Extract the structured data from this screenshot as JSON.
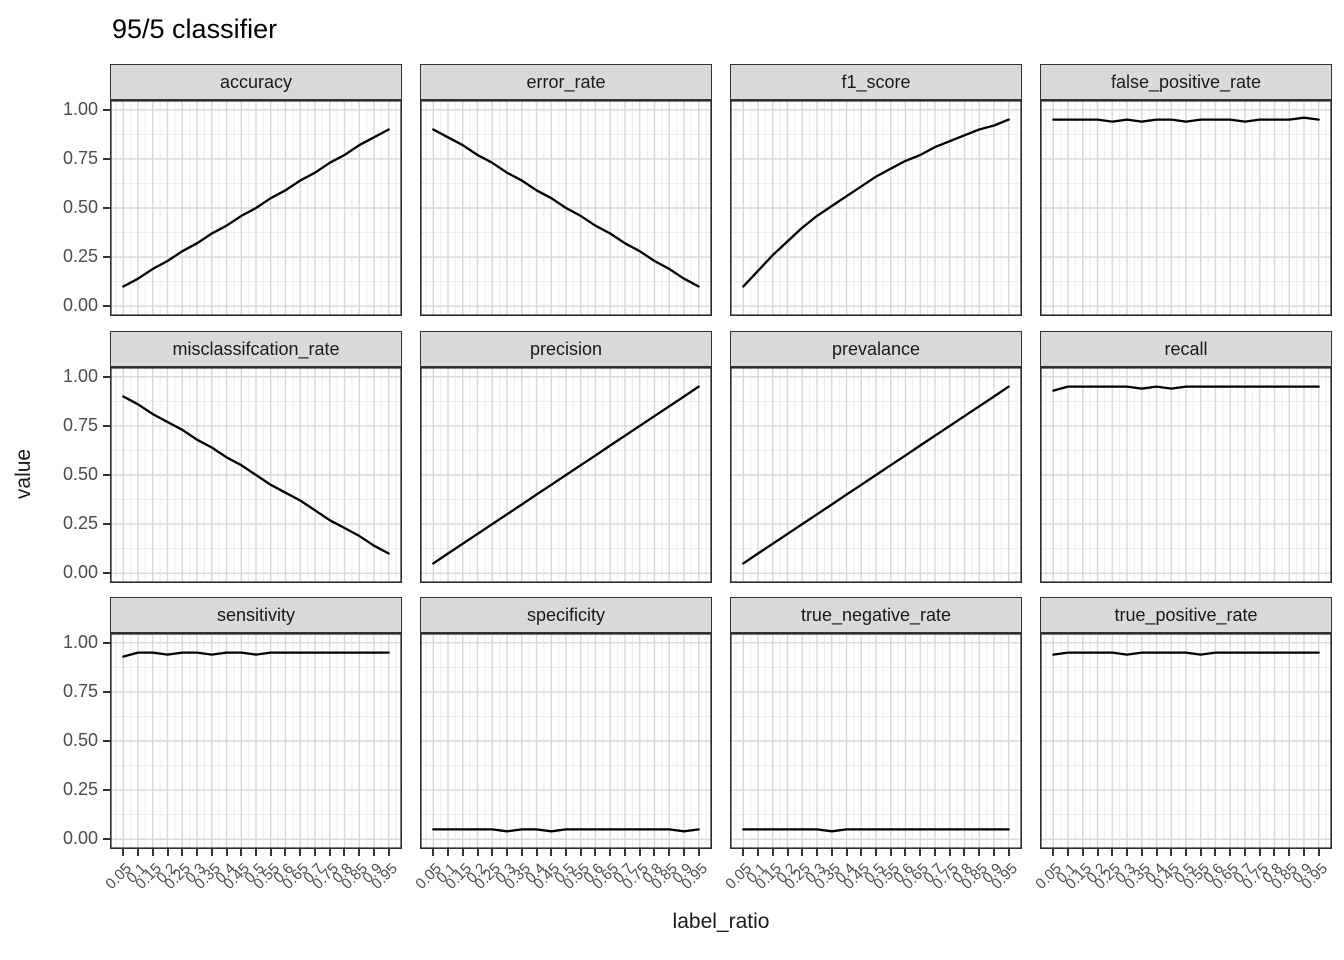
{
  "title": "95/5 classifier",
  "colors": {
    "line": "#000000",
    "strip_bg": "#d9d9d9",
    "strip_border": "#333333",
    "panel_border": "#2b2b2b",
    "grid_major": "#d8d8d8",
    "grid_minor": "#ededed",
    "tick_text": "#4d4d4d",
    "title_text": "#000000"
  },
  "chart_data": {
    "type": "line",
    "title": "95/5 classifier",
    "xlabel": "label_ratio",
    "ylabel": "value",
    "ylim": [
      0,
      1
    ],
    "grid": true,
    "legend_position": "none",
    "facet_layout": {
      "rows": 3,
      "cols": 4
    },
    "x": [
      0.05,
      0.1,
      0.15,
      0.2,
      0.25,
      0.3,
      0.35,
      0.4,
      0.45,
      0.5,
      0.55,
      0.6,
      0.65,
      0.7,
      0.75,
      0.8,
      0.85,
      0.9,
      0.95
    ],
    "x_tick_labels": [
      "0.05",
      "0.1",
      "0.15",
      "0.2",
      "0.25",
      "0.3",
      "0.35",
      "0.4",
      "0.45",
      "0.5",
      "0.55",
      "0.6",
      "0.65",
      "0.7",
      "0.75",
      "0.8",
      "0.85",
      "0.9",
      "0.95"
    ],
    "y_tick_values": [
      1.0,
      0.75,
      0.5,
      0.25,
      0.0
    ],
    "y_tick_labels": [
      "1.00",
      "0.75",
      "0.50",
      "0.25",
      "0.00"
    ],
    "series": [
      {
        "name": "accuracy",
        "values": [
          0.1,
          0.14,
          0.19,
          0.23,
          0.28,
          0.32,
          0.37,
          0.41,
          0.46,
          0.5,
          0.55,
          0.59,
          0.64,
          0.68,
          0.73,
          0.77,
          0.82,
          0.86,
          0.9
        ]
      },
      {
        "name": "error_rate",
        "values": [
          0.9,
          0.86,
          0.82,
          0.77,
          0.73,
          0.68,
          0.64,
          0.59,
          0.55,
          0.5,
          0.46,
          0.41,
          0.37,
          0.32,
          0.28,
          0.23,
          0.19,
          0.14,
          0.1
        ]
      },
      {
        "name": "f1_score",
        "values": [
          0.1,
          0.18,
          0.26,
          0.33,
          0.4,
          0.46,
          0.51,
          0.56,
          0.61,
          0.66,
          0.7,
          0.74,
          0.77,
          0.81,
          0.84,
          0.87,
          0.9,
          0.92,
          0.95
        ]
      },
      {
        "name": "false_positive_rate",
        "values": [
          0.95,
          0.95,
          0.95,
          0.95,
          0.94,
          0.95,
          0.94,
          0.95,
          0.95,
          0.94,
          0.95,
          0.95,
          0.95,
          0.94,
          0.95,
          0.95,
          0.95,
          0.96,
          0.95
        ]
      },
      {
        "name": "misclassifcation_rate",
        "values": [
          0.9,
          0.86,
          0.81,
          0.77,
          0.73,
          0.68,
          0.64,
          0.59,
          0.55,
          0.5,
          0.45,
          0.41,
          0.37,
          0.32,
          0.27,
          0.23,
          0.19,
          0.14,
          0.1
        ]
      },
      {
        "name": "precision",
        "values": [
          0.05,
          0.1,
          0.15,
          0.2,
          0.25,
          0.3,
          0.35,
          0.4,
          0.45,
          0.5,
          0.55,
          0.6,
          0.65,
          0.7,
          0.75,
          0.8,
          0.85,
          0.9,
          0.95
        ]
      },
      {
        "name": "prevalance",
        "values": [
          0.05,
          0.1,
          0.15,
          0.2,
          0.25,
          0.3,
          0.35,
          0.4,
          0.45,
          0.5,
          0.55,
          0.6,
          0.65,
          0.7,
          0.75,
          0.8,
          0.85,
          0.9,
          0.95
        ]
      },
      {
        "name": "recall",
        "values": [
          0.93,
          0.95,
          0.95,
          0.95,
          0.95,
          0.95,
          0.94,
          0.95,
          0.94,
          0.95,
          0.95,
          0.95,
          0.95,
          0.95,
          0.95,
          0.95,
          0.95,
          0.95,
          0.95
        ]
      },
      {
        "name": "sensitivity",
        "values": [
          0.93,
          0.95,
          0.95,
          0.94,
          0.95,
          0.95,
          0.94,
          0.95,
          0.95,
          0.94,
          0.95,
          0.95,
          0.95,
          0.95,
          0.95,
          0.95,
          0.95,
          0.95,
          0.95
        ]
      },
      {
        "name": "specificity",
        "values": [
          0.05,
          0.05,
          0.05,
          0.05,
          0.05,
          0.04,
          0.05,
          0.05,
          0.04,
          0.05,
          0.05,
          0.05,
          0.05,
          0.05,
          0.05,
          0.05,
          0.05,
          0.04,
          0.05
        ]
      },
      {
        "name": "true_negative_rate",
        "values": [
          0.05,
          0.05,
          0.05,
          0.05,
          0.05,
          0.05,
          0.04,
          0.05,
          0.05,
          0.05,
          0.05,
          0.05,
          0.05,
          0.05,
          0.05,
          0.05,
          0.05,
          0.05,
          0.05
        ]
      },
      {
        "name": "true_positive_rate",
        "values": [
          0.94,
          0.95,
          0.95,
          0.95,
          0.95,
          0.94,
          0.95,
          0.95,
          0.95,
          0.95,
          0.94,
          0.95,
          0.95,
          0.95,
          0.95,
          0.95,
          0.95,
          0.95,
          0.95
        ]
      }
    ]
  }
}
